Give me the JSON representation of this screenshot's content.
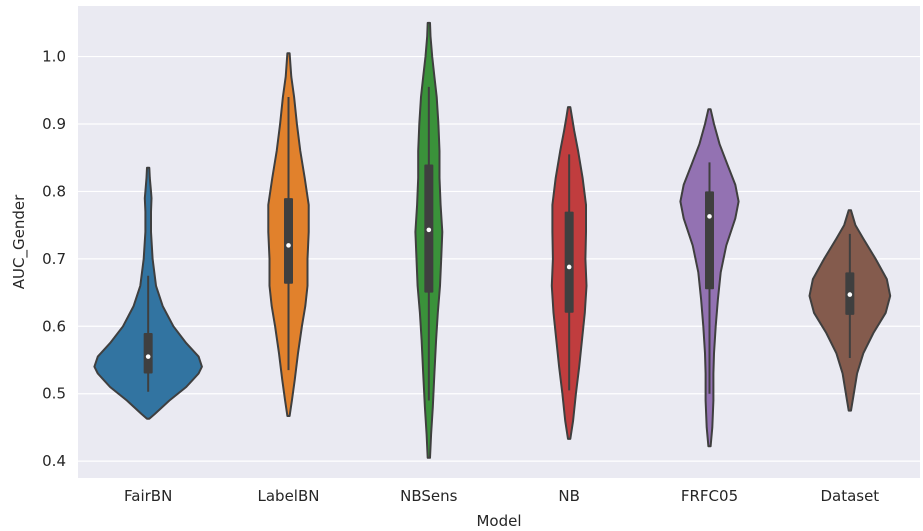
{
  "chart_data": {
    "type": "violin",
    "xlabel": "Model",
    "ylabel": "AUC_Gender",
    "ylim": [
      0.375,
      1.075
    ],
    "yticks": [
      0.4,
      0.5,
      0.6,
      0.7,
      0.8,
      0.9,
      1.0
    ],
    "ytick_labels": [
      "0.4",
      "0.5",
      "0.6",
      "0.7",
      "0.8",
      "0.9",
      "1.0"
    ],
    "grid": true,
    "background": "#eaeaf2",
    "categories": [
      "FairBN",
      "LabelBN",
      "NBSens",
      "NB",
      "FRFC05",
      "Dataset"
    ],
    "series": [
      {
        "category": "FairBN",
        "color": "#3274a1",
        "median": 0.555,
        "q1": 0.53,
        "q3": 0.59,
        "whisker_low": 0.503,
        "whisker_high": 0.675,
        "profile": [
          [
            0.463,
            0.02
          ],
          [
            0.47,
            0.12
          ],
          [
            0.49,
            0.38
          ],
          [
            0.51,
            0.68
          ],
          [
            0.53,
            0.9
          ],
          [
            0.54,
            0.96
          ],
          [
            0.555,
            0.9
          ],
          [
            0.575,
            0.68
          ],
          [
            0.6,
            0.45
          ],
          [
            0.63,
            0.26
          ],
          [
            0.66,
            0.14
          ],
          [
            0.7,
            0.08
          ],
          [
            0.74,
            0.05
          ],
          [
            0.77,
            0.05
          ],
          [
            0.79,
            0.06
          ],
          [
            0.8,
            0.05
          ],
          [
            0.82,
            0.03
          ],
          [
            0.835,
            0.02
          ]
        ]
      },
      {
        "category": "LabelBN",
        "color": "#e1812c",
        "median": 0.72,
        "q1": 0.663,
        "q3": 0.79,
        "whisker_low": 0.535,
        "whisker_high": 0.94,
        "profile": [
          [
            0.467,
            0.02
          ],
          [
            0.49,
            0.06
          ],
          [
            0.52,
            0.11
          ],
          [
            0.56,
            0.17
          ],
          [
            0.6,
            0.24
          ],
          [
            0.63,
            0.3
          ],
          [
            0.66,
            0.34
          ],
          [
            0.7,
            0.34
          ],
          [
            0.74,
            0.36
          ],
          [
            0.78,
            0.36
          ],
          [
            0.82,
            0.29
          ],
          [
            0.86,
            0.21
          ],
          [
            0.9,
            0.15
          ],
          [
            0.94,
            0.1
          ],
          [
            0.97,
            0.05
          ],
          [
            1.005,
            0.02
          ]
        ]
      },
      {
        "category": "NBSens",
        "color": "#3a923a",
        "median": 0.743,
        "q1": 0.65,
        "q3": 0.84,
        "whisker_low": 0.49,
        "whisker_high": 0.955,
        "profile": [
          [
            0.405,
            0.02
          ],
          [
            0.44,
            0.04
          ],
          [
            0.48,
            0.07
          ],
          [
            0.53,
            0.1
          ],
          [
            0.58,
            0.13
          ],
          [
            0.62,
            0.16
          ],
          [
            0.66,
            0.2
          ],
          [
            0.7,
            0.22
          ],
          [
            0.74,
            0.24
          ],
          [
            0.78,
            0.21
          ],
          [
            0.82,
            0.19
          ],
          [
            0.86,
            0.19
          ],
          [
            0.9,
            0.17
          ],
          [
            0.94,
            0.14
          ],
          [
            0.97,
            0.1
          ],
          [
            1.0,
            0.06
          ],
          [
            1.03,
            0.03
          ],
          [
            1.05,
            0.02
          ]
        ]
      },
      {
        "category": "NB",
        "color": "#c03d3e",
        "median": 0.688,
        "q1": 0.62,
        "q3": 0.77,
        "whisker_low": 0.505,
        "whisker_high": 0.855,
        "profile": [
          [
            0.433,
            0.02
          ],
          [
            0.46,
            0.07
          ],
          [
            0.5,
            0.12
          ],
          [
            0.54,
            0.18
          ],
          [
            0.58,
            0.23
          ],
          [
            0.62,
            0.28
          ],
          [
            0.66,
            0.31
          ],
          [
            0.7,
            0.29
          ],
          [
            0.74,
            0.3
          ],
          [
            0.78,
            0.3
          ],
          [
            0.82,
            0.24
          ],
          [
            0.86,
            0.16
          ],
          [
            0.89,
            0.09
          ],
          [
            0.91,
            0.05
          ],
          [
            0.925,
            0.02
          ]
        ]
      },
      {
        "category": "FRFC05",
        "color": "#9372b2",
        "median": 0.763,
        "q1": 0.655,
        "q3": 0.8,
        "whisker_low": 0.5,
        "whisker_high": 0.843,
        "profile": [
          [
            0.422,
            0.02
          ],
          [
            0.45,
            0.05
          ],
          [
            0.49,
            0.07
          ],
          [
            0.53,
            0.07
          ],
          [
            0.56,
            0.08
          ],
          [
            0.6,
            0.11
          ],
          [
            0.64,
            0.15
          ],
          [
            0.68,
            0.2
          ],
          [
            0.72,
            0.3
          ],
          [
            0.76,
            0.46
          ],
          [
            0.785,
            0.52
          ],
          [
            0.81,
            0.46
          ],
          [
            0.84,
            0.32
          ],
          [
            0.87,
            0.18
          ],
          [
            0.9,
            0.08
          ],
          [
            0.922,
            0.02
          ]
        ]
      },
      {
        "category": "Dataset",
        "color": "#845b4d",
        "median": 0.647,
        "q1": 0.617,
        "q3": 0.68,
        "whisker_low": 0.553,
        "whisker_high": 0.737,
        "profile": [
          [
            0.475,
            0.02
          ],
          [
            0.5,
            0.07
          ],
          [
            0.53,
            0.13
          ],
          [
            0.56,
            0.24
          ],
          [
            0.59,
            0.42
          ],
          [
            0.62,
            0.64
          ],
          [
            0.645,
            0.72
          ],
          [
            0.67,
            0.66
          ],
          [
            0.7,
            0.46
          ],
          [
            0.73,
            0.24
          ],
          [
            0.75,
            0.1
          ],
          [
            0.772,
            0.02
          ]
        ]
      }
    ]
  }
}
